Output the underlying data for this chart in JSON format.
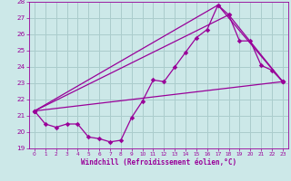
{
  "xlabel": "Windchill (Refroidissement éolien,°C)",
  "bg_color": "#cce8e8",
  "grid_color": "#aacccc",
  "line_color": "#990099",
  "xlim": [
    -0.5,
    23.5
  ],
  "ylim": [
    19,
    28
  ],
  "yticks": [
    19,
    20,
    21,
    22,
    23,
    24,
    25,
    26,
    27,
    28
  ],
  "xticks": [
    0,
    1,
    2,
    3,
    4,
    5,
    6,
    7,
    8,
    9,
    10,
    11,
    12,
    13,
    14,
    15,
    16,
    17,
    18,
    19,
    20,
    21,
    22,
    23
  ],
  "line1_x": [
    0,
    1,
    2,
    3,
    4,
    5,
    6,
    7,
    8,
    9,
    10,
    11,
    12,
    13,
    14,
    15,
    16,
    17,
    18,
    19,
    20,
    21,
    22,
    23
  ],
  "line1_y": [
    21.3,
    20.5,
    20.3,
    20.5,
    20.5,
    19.7,
    19.6,
    19.4,
    19.5,
    20.9,
    21.9,
    23.2,
    23.1,
    24.0,
    24.9,
    25.8,
    26.3,
    27.8,
    27.2,
    25.6,
    25.6,
    24.1,
    23.8,
    23.1
  ],
  "line2_x": [
    0,
    23
  ],
  "line2_y": [
    21.3,
    23.1
  ],
  "line3_x": [
    0,
    17,
    23
  ],
  "line3_y": [
    21.3,
    27.8,
    23.1
  ],
  "line4_x": [
    0,
    18,
    23
  ],
  "line4_y": [
    21.3,
    27.2,
    23.1
  ]
}
